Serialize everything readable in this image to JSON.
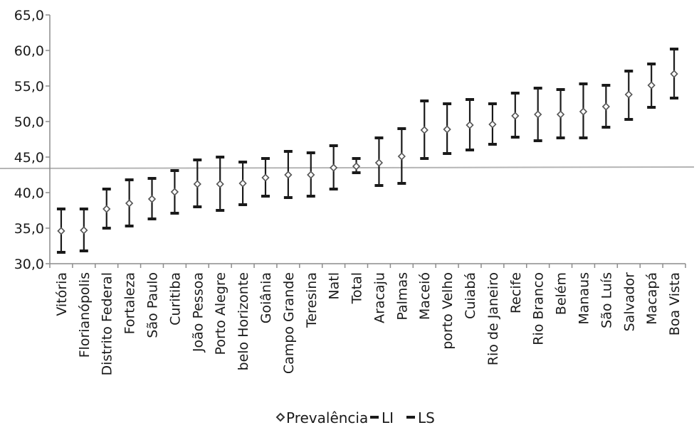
{
  "chart_data": {
    "type": "scatter",
    "title": "",
    "xlabel": "",
    "ylabel": "",
    "ylim": [
      30.0,
      65.0
    ],
    "yticks": [
      "30,0",
      "35,0",
      "40,0",
      "45,0",
      "50,0",
      "55,0",
      "60,0",
      "65,0"
    ],
    "grid": false,
    "legend_position": "bottom",
    "reference_line": 43.5,
    "categories": [
      "Vitória",
      "Florianópolis",
      "Distrito Federal",
      "Fortaleza",
      "São Paulo",
      "Curitiba",
      "João Pessoa",
      "Porto Alegre",
      "belo Horizonte",
      "Goiânia",
      "Campo Grande",
      "Teresina",
      "Natl",
      "Total",
      "Aracaju",
      "Palmas",
      "Maceió",
      "porto Velho",
      "Cuiabá",
      "Rio de Janeiro",
      "Recife",
      "Rio Branco",
      "Belém",
      "Manaus",
      "São Luís",
      "Salvador",
      "Macapá",
      "Boa Vista"
    ],
    "series": [
      {
        "name": "Prevalência",
        "values": [
          34.6,
          34.7,
          37.7,
          38.5,
          39.1,
          40.1,
          41.2,
          41.2,
          41.3,
          42.1,
          42.5,
          42.5,
          43.5,
          43.7,
          44.2,
          45.1,
          48.8,
          48.9,
          49.5,
          49.6,
          50.8,
          51.0,
          51.0,
          51.4,
          52.1,
          53.8,
          55.1,
          56.7
        ]
      },
      {
        "name": "LI",
        "values": [
          31.6,
          31.8,
          35.0,
          35.3,
          36.3,
          37.1,
          38.0,
          37.5,
          38.3,
          39.5,
          39.3,
          39.5,
          40.5,
          42.8,
          41.0,
          41.3,
          44.8,
          45.5,
          46.0,
          46.8,
          47.8,
          47.3,
          47.7,
          47.7,
          49.2,
          50.3,
          52.0,
          53.3
        ]
      },
      {
        "name": "LS",
        "values": [
          37.7,
          37.7,
          40.5,
          41.8,
          42.0,
          43.1,
          44.6,
          45.0,
          44.3,
          44.8,
          45.8,
          45.6,
          46.6,
          44.8,
          47.7,
          49.0,
          52.9,
          52.5,
          53.1,
          52.5,
          54.0,
          54.7,
          54.5,
          55.3,
          55.1,
          57.1,
          58.1,
          60.2
        ]
      }
    ],
    "colors": {
      "marker_fill": "#ffffff",
      "marker_stroke": "#555555",
      "error_bar": "#1a1a1a",
      "axis": "#8c8c8c",
      "reference_line": "#b5b5b5"
    }
  }
}
